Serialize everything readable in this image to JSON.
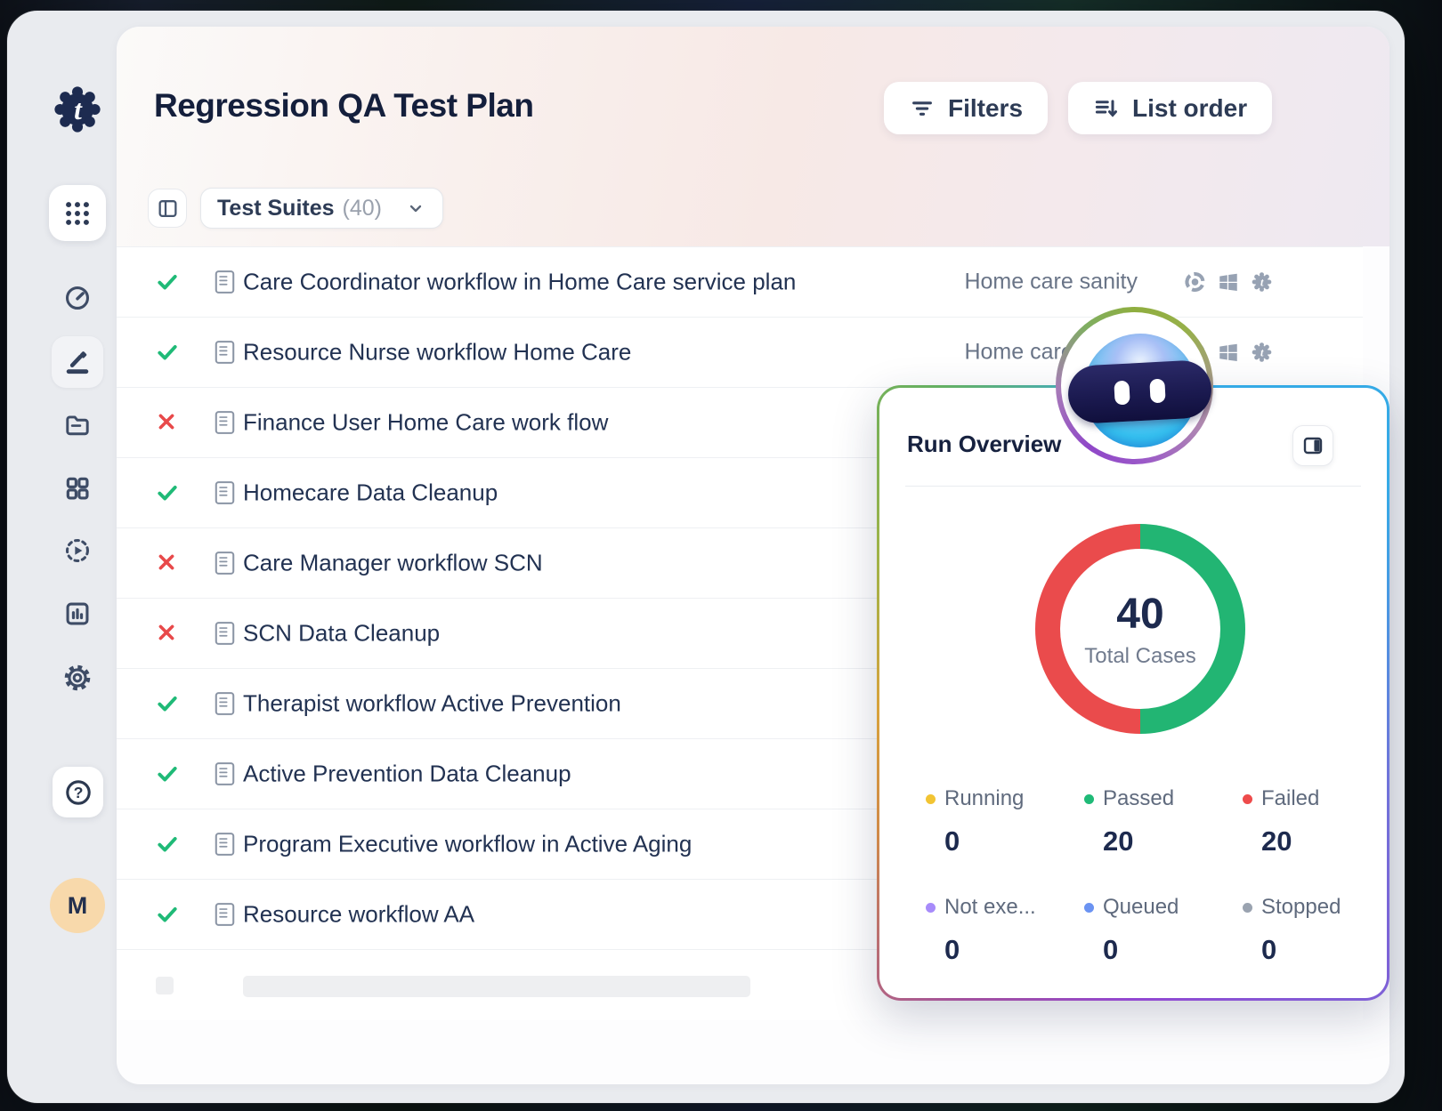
{
  "header": {
    "title": "Regression QA Test Plan",
    "filters_button": "Filters",
    "list_order_button": "List order"
  },
  "toolbar": {
    "suites_label": "Test Suites",
    "suites_count": "(40)"
  },
  "suites": [
    {
      "name": "Care Coordinator workflow in Home Care service plan",
      "status": "passed",
      "tag": "Home care sanity",
      "env_icons": [
        "chrome-icon",
        "windows-icon",
        "testsigma-icon"
      ]
    },
    {
      "name": "Resource Nurse workflow Home Care",
      "status": "passed",
      "tag": "Home care sanity",
      "env_icons": [
        "chrome-icon",
        "windows-icon",
        "testsigma-icon"
      ]
    },
    {
      "name": "Finance User Home Care work flow",
      "status": "failed"
    },
    {
      "name": "Homecare Data Cleanup",
      "status": "passed"
    },
    {
      "name": "Care Manager workflow SCN",
      "status": "failed"
    },
    {
      "name": "SCN Data Cleanup",
      "status": "failed"
    },
    {
      "name": "Therapist workflow Active Prevention",
      "status": "passed"
    },
    {
      "name": "Active Prevention Data Cleanup",
      "status": "passed"
    },
    {
      "name": "Program Executive workflow in Active Aging",
      "status": "passed"
    },
    {
      "name": "Resource workflow AA",
      "status": "passed"
    }
  ],
  "status_colors": {
    "passed": "#1fba77",
    "failed": "#e8494a"
  },
  "sidebar": {
    "icons": [
      "apps-grid-icon",
      "dashboard-icon",
      "edit-pencil-icon",
      "folder-icon",
      "apps-icon",
      "run-play-icon",
      "reports-icon",
      "settings-gear-icon",
      "help-icon"
    ],
    "avatar_initial": "M"
  },
  "run_overview": {
    "title": "Run Overview",
    "total_value": "40",
    "total_label": "Total Cases",
    "legend": [
      {
        "label": "Running",
        "value": "0",
        "color": "#f2c433"
      },
      {
        "label": "Passed",
        "value": "20",
        "color": "#1fba77"
      },
      {
        "label": "Failed",
        "value": "20",
        "color": "#ee4b4b"
      },
      {
        "label": "Not exe...",
        "value": "0",
        "color": "#a78bfa"
      },
      {
        "label": "Queued",
        "value": "0",
        "color": "#6b93f2"
      },
      {
        "label": "Stopped",
        "value": "0",
        "color": "#9aa3b0"
      }
    ]
  },
  "chart_data": {
    "type": "pie",
    "title": "Run Overview",
    "labels": [
      "Passed",
      "Failed"
    ],
    "values": [
      20,
      20
    ],
    "colors": [
      "#22b573",
      "#ea4b4c"
    ],
    "center_value": "40",
    "center_label": "Total Cases",
    "legend_position": "bottom"
  }
}
